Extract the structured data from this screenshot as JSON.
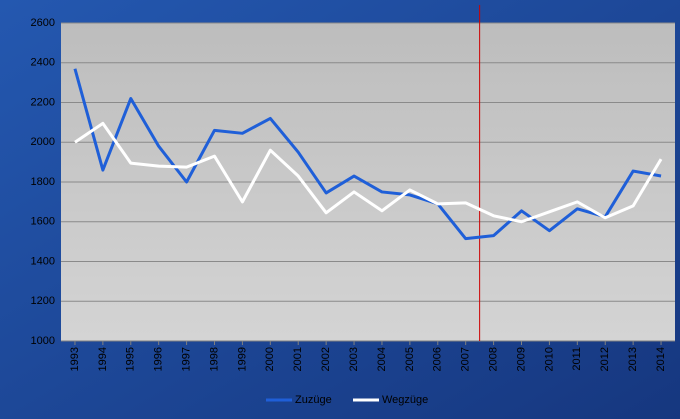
{
  "chart_data": {
    "type": "line",
    "x": [
      1993,
      1994,
      1995,
      1996,
      1997,
      1998,
      1999,
      2000,
      2001,
      2002,
      2003,
      2004,
      2005,
      2006,
      2007,
      2008,
      2009,
      2010,
      2011,
      2012,
      2013,
      2014
    ],
    "xlim": [
      1992.5,
      2014.5
    ],
    "series": [
      {
        "name": "Zuzüge",
        "color": "#1f5fd8",
        "values": [
          2370,
          1860,
          2220,
          1980,
          1800,
          2060,
          2045,
          2120,
          1950,
          1745,
          1830,
          1750,
          1735,
          1690,
          1515,
          1530,
          1655,
          1555,
          1665,
          1625,
          1855,
          1830
        ]
      },
      {
        "name": "Wegzüge",
        "color": "#ffffff",
        "values": [
          2000,
          2095,
          1895,
          1880,
          1875,
          1930,
          1700,
          1960,
          1830,
          1645,
          1750,
          1655,
          1760,
          1690,
          1695,
          1630,
          1600,
          1650,
          1700,
          1620,
          1680,
          1915
        ]
      }
    ],
    "ylim": [
      1000,
      2600
    ],
    "yticks": [
      1000,
      1200,
      1400,
      1600,
      1800,
      2000,
      2200,
      2400,
      2600
    ],
    "grid": true,
    "vline": {
      "x": 2007.5,
      "color": "#cc0000"
    },
    "legend": "bottom"
  }
}
